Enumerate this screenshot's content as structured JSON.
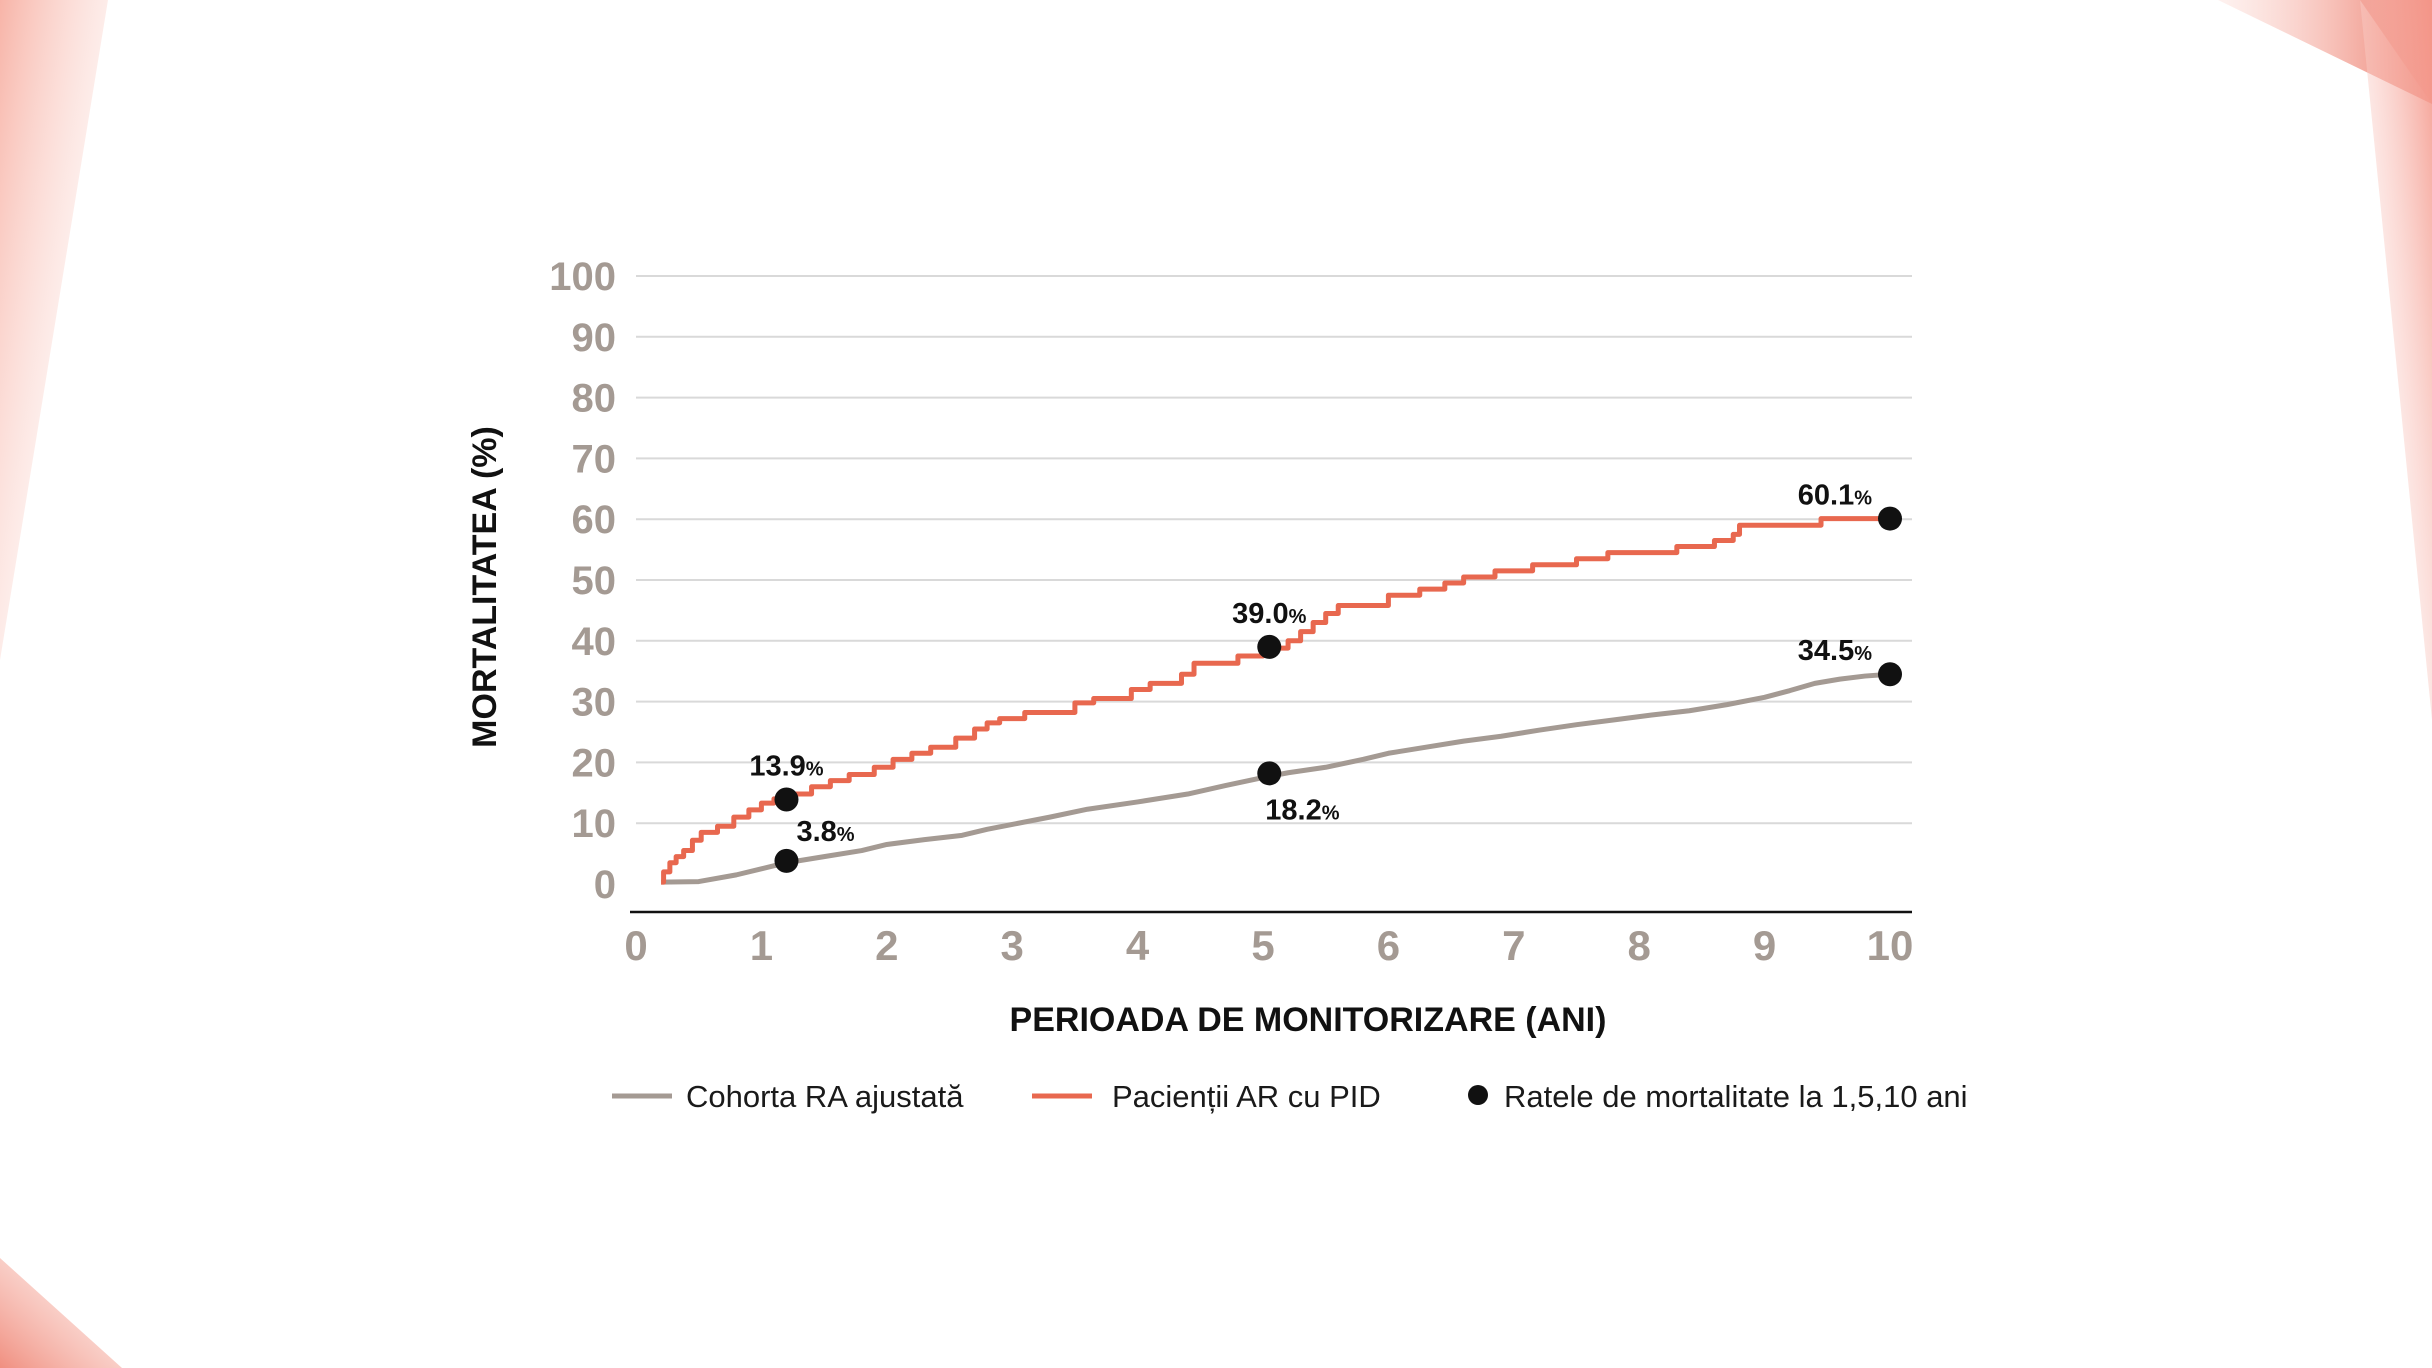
{
  "slide": {
    "colors": {
      "accent_red": "#e8684f",
      "accent_light": "#f7b9ad",
      "grey_line": "#a49a93",
      "dot": "#111111",
      "grid": "#d9d9d9"
    }
  },
  "chart_data": {
    "type": "line",
    "title": "",
    "xlabel": "PERIOADA DE MONITORIZARE (ANI)",
    "ylabel": "MORTALITATEA (%)",
    "xlim": [
      0,
      10
    ],
    "ylim": [
      0,
      100
    ],
    "x_ticks": [
      "0",
      "1",
      "2",
      "3",
      "4",
      "5",
      "6",
      "7",
      "8",
      "9",
      "10"
    ],
    "y_ticks": [
      "0",
      "10",
      "20",
      "30",
      "40",
      "50",
      "60",
      "70",
      "80",
      "90",
      "100"
    ],
    "grid": true,
    "series": [
      {
        "name": "Cohorta RA ajustată",
        "color": "#a49a93",
        "style": "line",
        "points": [
          [
            0.2,
            0.3
          ],
          [
            0.5,
            0.4
          ],
          [
            0.8,
            1.5
          ],
          [
            1.0,
            2.5
          ],
          [
            1.2,
            3.5
          ],
          [
            1.5,
            4.5
          ],
          [
            1.8,
            5.5
          ],
          [
            2.0,
            6.5
          ],
          [
            2.3,
            7.3
          ],
          [
            2.6,
            8.0
          ],
          [
            2.8,
            9.0
          ],
          [
            3.0,
            9.8
          ],
          [
            3.3,
            11.0
          ],
          [
            3.6,
            12.3
          ],
          [
            4.0,
            13.5
          ],
          [
            4.4,
            14.8
          ],
          [
            4.7,
            16.2
          ],
          [
            5.0,
            17.5
          ],
          [
            5.2,
            18.3
          ],
          [
            5.5,
            19.2
          ],
          [
            5.8,
            20.5
          ],
          [
            6.0,
            21.5
          ],
          [
            6.3,
            22.5
          ],
          [
            6.6,
            23.5
          ],
          [
            6.9,
            24.3
          ],
          [
            7.2,
            25.3
          ],
          [
            7.5,
            26.2
          ],
          [
            7.8,
            27.0
          ],
          [
            8.1,
            27.8
          ],
          [
            8.4,
            28.5
          ],
          [
            8.7,
            29.5
          ],
          [
            9.0,
            30.7
          ],
          [
            9.2,
            31.8
          ],
          [
            9.4,
            33.0
          ],
          [
            9.6,
            33.7
          ],
          [
            9.8,
            34.2
          ],
          [
            10.0,
            34.5
          ]
        ]
      },
      {
        "name": "Pacienții AR cu PID",
        "color": "#e8684f",
        "style": "step",
        "points": [
          [
            0.2,
            0.3
          ],
          [
            0.22,
            2.0
          ],
          [
            0.27,
            3.5
          ],
          [
            0.32,
            4.5
          ],
          [
            0.38,
            5.5
          ],
          [
            0.45,
            7.2
          ],
          [
            0.52,
            8.5
          ],
          [
            0.65,
            9.5
          ],
          [
            0.78,
            11.0
          ],
          [
            0.9,
            12.2
          ],
          [
            1.0,
            13.3
          ],
          [
            1.1,
            14.0
          ],
          [
            1.25,
            14.8
          ],
          [
            1.4,
            16.0
          ],
          [
            1.55,
            17.0
          ],
          [
            1.7,
            18.0
          ],
          [
            1.9,
            19.2
          ],
          [
            2.05,
            20.5
          ],
          [
            2.2,
            21.5
          ],
          [
            2.35,
            22.5
          ],
          [
            2.55,
            24.0
          ],
          [
            2.7,
            25.5
          ],
          [
            2.8,
            26.5
          ],
          [
            2.9,
            27.2
          ],
          [
            3.1,
            28.2
          ],
          [
            3.5,
            29.8
          ],
          [
            3.65,
            30.5
          ],
          [
            3.95,
            32.0
          ],
          [
            4.1,
            33.0
          ],
          [
            4.35,
            34.5
          ],
          [
            4.45,
            36.3
          ],
          [
            4.8,
            37.5
          ],
          [
            5.0,
            38.8
          ],
          [
            5.2,
            40.0
          ],
          [
            5.3,
            41.5
          ],
          [
            5.4,
            43.0
          ],
          [
            5.5,
            44.5
          ],
          [
            5.6,
            45.8
          ],
          [
            6.0,
            47.5
          ],
          [
            6.25,
            48.5
          ],
          [
            6.45,
            49.5
          ],
          [
            6.6,
            50.5
          ],
          [
            6.85,
            51.5
          ],
          [
            7.15,
            52.5
          ],
          [
            7.5,
            53.5
          ],
          [
            7.75,
            54.5
          ],
          [
            8.3,
            55.5
          ],
          [
            8.6,
            56.5
          ],
          [
            8.75,
            57.5
          ],
          [
            8.8,
            59.0
          ],
          [
            9.45,
            60.1
          ],
          [
            10.0,
            60.1
          ]
        ]
      }
    ],
    "markers": {
      "name": "Ratele de mortalitate la 1,5,10 ani",
      "color": "#111111",
      "points": [
        {
          "x": 1.2,
          "y": 13.9,
          "label": "13.9",
          "pct": "%",
          "position": "above"
        },
        {
          "x": 1.2,
          "y": 3.8,
          "label": "3.8",
          "pct": "%",
          "position": "above-right"
        },
        {
          "x": 5.05,
          "y": 39.0,
          "label": "39.0",
          "pct": "%",
          "position": "above"
        },
        {
          "x": 5.05,
          "y": 18.2,
          "label": "18.2",
          "pct": "%",
          "position": "below"
        },
        {
          "x": 10.0,
          "y": 60.1,
          "label": "60.1",
          "pct": "%",
          "position": "above-left"
        },
        {
          "x": 10.0,
          "y": 34.5,
          "label": "34.5",
          "pct": "%",
          "position": "above-left"
        }
      ]
    },
    "legend": {
      "placement": "bottom",
      "items": [
        {
          "label": "Cohorta RA ajustată",
          "kind": "line",
          "color": "#a49a93"
        },
        {
          "label": "Pacienții AR cu PID",
          "kind": "line",
          "color": "#e8684f"
        },
        {
          "label": "Ratele de mortalitate la 1,5,10 ani",
          "kind": "dot",
          "color": "#111111"
        }
      ]
    }
  }
}
